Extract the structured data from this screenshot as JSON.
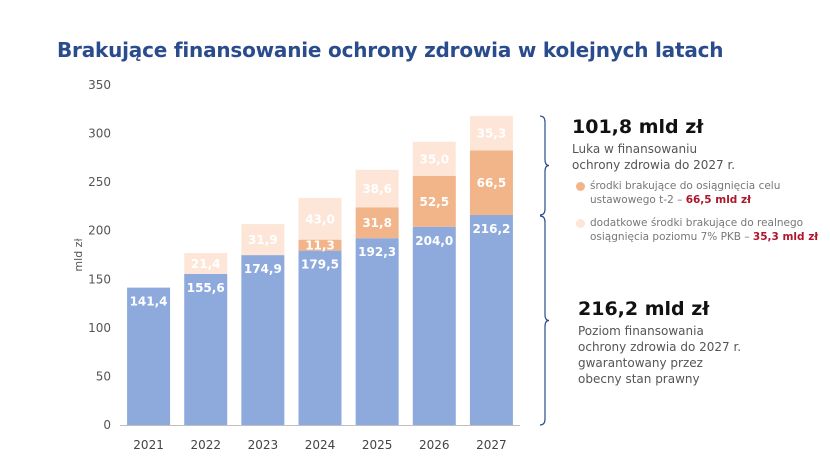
{
  "title": "Brakujące finansowanie ochrony zdrowia w kolejnych latach",
  "chart_data": {
    "type": "bar",
    "stacked": true,
    "categories": [
      "2021",
      "2022",
      "2023",
      "2024",
      "2025",
      "2026",
      "2027"
    ],
    "series": [
      {
        "values": [
          141.4,
          155.6,
          174.9,
          179.5,
          192.3,
          204.0,
          216.2
        ],
        "labels": [
          "141,4",
          "155,6",
          "174,9",
          "179,5",
          "192,3",
          "204,0",
          "216,2"
        ],
        "color": "#8eaadc"
      },
      {
        "values": [
          null,
          null,
          null,
          11.3,
          31.8,
          52.5,
          66.5
        ],
        "labels": [
          "",
          "",
          "",
          "11,3",
          "31,8",
          "52,5",
          "66,5"
        ],
        "color": "#f2b489"
      },
      {
        "values": [
          null,
          21.4,
          31.9,
          43.0,
          38.6,
          35.0,
          35.3
        ],
        "labels": [
          "",
          "21,4",
          "31,9",
          "43,0",
          "38,6",
          "35,0",
          "35,3"
        ],
        "color": "#fde6d7"
      }
    ],
    "ylabel": "mld zł",
    "ylim": [
      0,
      350
    ],
    "yticks": [
      0,
      50,
      100,
      150,
      200,
      250,
      300,
      350
    ],
    "grid": false
  },
  "annotations": {
    "gap_total": "101,8 mld zł",
    "gap_desc": [
      "Luka w finansowaniu",
      "ochrony zdrowia do 2027 r."
    ],
    "legend1_text": [
      "środki brakujące do osiągnięcia celu",
      "ustawowego t-2 – "
    ],
    "legend1_value": "66,5 mld zł",
    "legend2_text": [
      "dodatkowe środki brakujące do realnego",
      "osiągnięcia poziomu 7% PKB – "
    ],
    "legend2_value": "35,3 mld zł",
    "base_total": "216,2 mld zł",
    "base_desc": [
      "Poziom finansowania",
      "ochrony zdrowia do 2027 r.",
      "gwarantowany przez",
      "obecny stan prawny"
    ]
  }
}
